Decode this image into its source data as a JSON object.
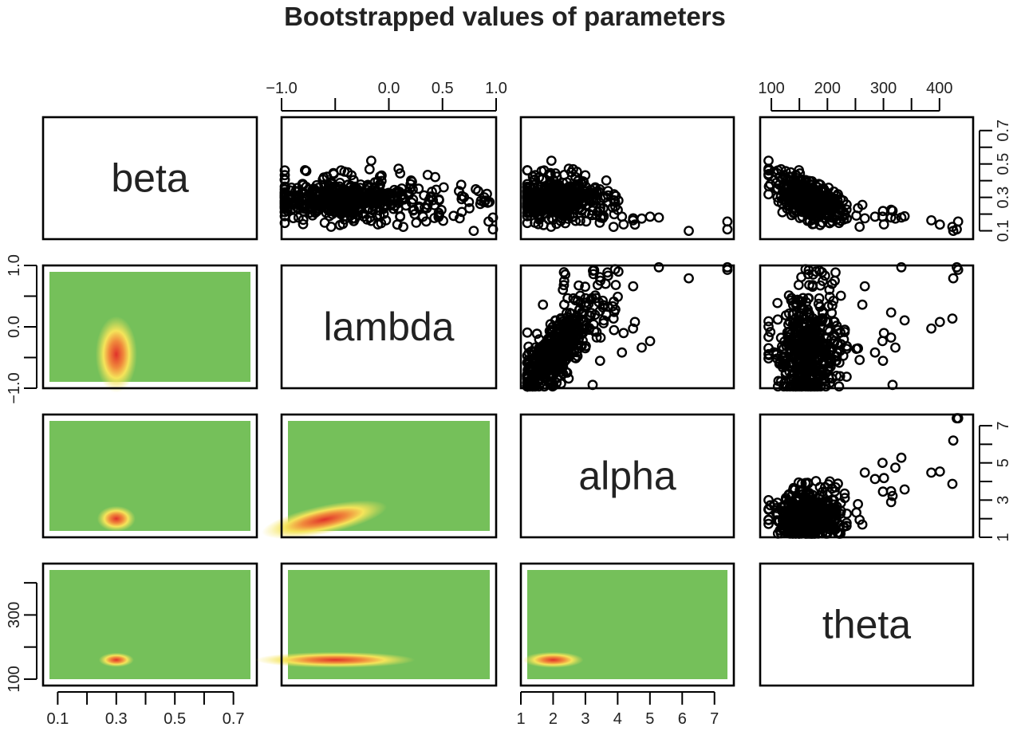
{
  "chart_data": {
    "type": "scatter",
    "title": "Bootstrapped values of parameters",
    "variables": [
      "beta",
      "lambda",
      "alpha",
      "theta"
    ],
    "ranges": {
      "beta": [
        0.05,
        0.78
      ],
      "lambda": [
        -1.0,
        1.0
      ],
      "alpha": [
        1.0,
        7.6
      ],
      "theta": [
        80,
        460
      ]
    },
    "ticks": {
      "beta": {
        "values": [
          0.1,
          0.3,
          0.5,
          0.7
        ],
        "minor": [
          0.2,
          0.4,
          0.6
        ],
        "labels": [
          "0.1",
          "0.3",
          "0.5",
          "0.7"
        ]
      },
      "lambda": {
        "values": [
          -1.0,
          0.0,
          0.5,
          1.0
        ],
        "minor": [
          -0.5
        ],
        "labels": [
          "−1.0",
          "0.0",
          "0.5",
          "1.0"
        ]
      },
      "lambda_left": {
        "values": [
          -1.0,
          0.0,
          1.0
        ],
        "minor": [
          -0.5,
          0.5
        ],
        "labels": [
          "−1.0",
          "0.0",
          "1.0"
        ]
      },
      "alpha": {
        "values": [
          1,
          2,
          3,
          4,
          5,
          6,
          7
        ],
        "labels": [
          "1",
          "2",
          "3",
          "4",
          "5",
          "6",
          "7"
        ]
      },
      "alpha_right": {
        "values": [
          1,
          3,
          5,
          7
        ],
        "minor": [
          2,
          4,
          6
        ],
        "labels": [
          "1",
          "3",
          "5",
          "7"
        ]
      },
      "theta": {
        "values": [
          100,
          200,
          300,
          400
        ],
        "minor": [
          150,
          250,
          350
        ],
        "labels": [
          "100",
          "200",
          "300",
          "400"
        ]
      },
      "theta_left": {
        "values": [
          100,
          300
        ],
        "minor": [
          200,
          400
        ],
        "labels": [
          "100",
          "300"
        ]
      },
      "beta_right": {
        "values": [
          0.1,
          0.3,
          0.5,
          0.7
        ],
        "minor": [
          0.2,
          0.4,
          0.6
        ],
        "labels": [
          "0.1",
          "0.3",
          "0.5",
          "0.7"
        ]
      }
    },
    "upper_panels": "scatter of bootstrap replicates (open circles)",
    "lower_panels": "smoothed 2D density (green low, yellow mid, red high)",
    "density_modes": {
      "beta_lambda": {
        "beta": 0.3,
        "lambda": -0.45
      },
      "beta_alpha": {
        "beta": 0.3,
        "alpha": 2.0
      },
      "lambda_alpha": {
        "lambda": -0.6,
        "alpha": 1.95
      },
      "beta_theta": {
        "beta": 0.3,
        "theta": 160
      },
      "lambda_theta": {
        "lambda": -0.5,
        "theta": 160
      },
      "alpha_theta": {
        "alpha": 2.0,
        "theta": 160
      }
    },
    "colors": {
      "low": "#75c05a",
      "mid": "#f5e45a",
      "high": "#e0322a",
      "point": "#000000"
    }
  }
}
